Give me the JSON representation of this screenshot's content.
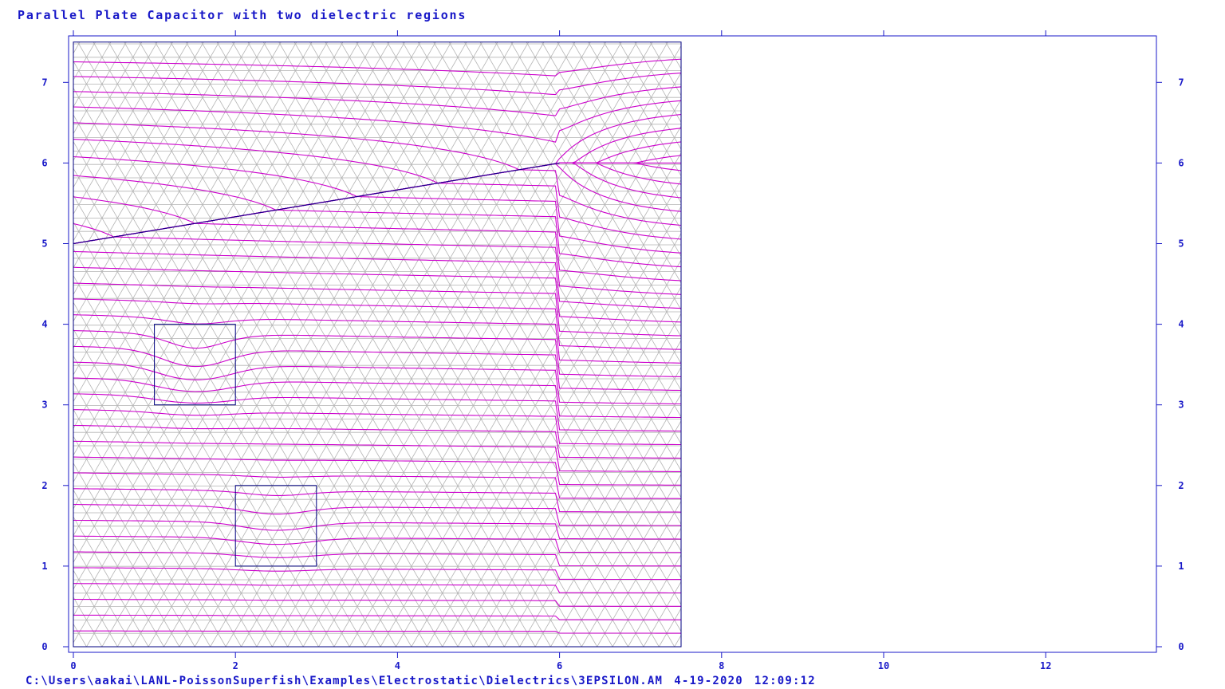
{
  "title": "Parallel Plate Capacitor with two dielectric regions",
  "footer": {
    "path": "C:\\Users\\aakai\\LANL-PoissonSuperfish\\Examples\\Electrostatic\\Dielectrics\\3EPSILON.AM",
    "date": "4-19-2020",
    "time": "12:09:12"
  },
  "colors": {
    "axis": "#1818c8",
    "contour": "#cc00cc",
    "mesh": "#b4b4b4",
    "outline": "#000080"
  },
  "chart_data": {
    "type": "line",
    "xlim": [
      0,
      13.4
    ],
    "ylim": [
      0,
      7.5
    ],
    "x_ticks": [
      0,
      2,
      4,
      6,
      8,
      10,
      12
    ],
    "y_ticks": [
      0,
      1,
      2,
      3,
      4,
      5,
      6,
      7
    ],
    "domain": {
      "x": [
        0,
        7.5
      ],
      "y": [
        0,
        7.5
      ]
    },
    "electrode_line": {
      "x": [
        0,
        6
      ],
      "y": [
        5,
        6
      ]
    },
    "dielectric_regions": [
      {
        "x": [
          1,
          2
        ],
        "y": [
          3,
          4
        ]
      },
      {
        "x": [
          2,
          3
        ],
        "y": [
          1,
          2
        ]
      }
    ],
    "mesh": "triangular",
    "equipotential_count": 44
  }
}
